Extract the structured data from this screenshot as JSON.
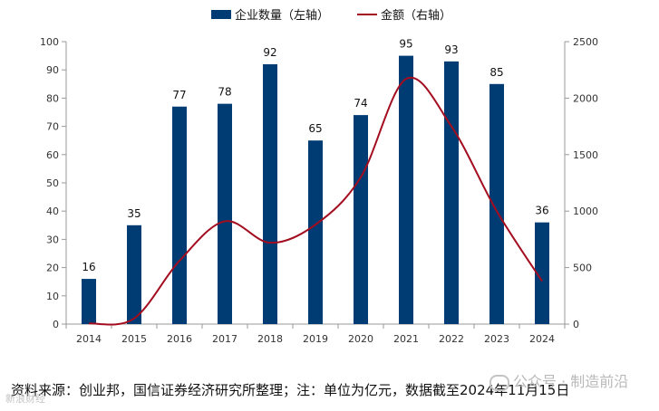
{
  "chart_data": {
    "type": "bar+line",
    "categories": [
      "2014",
      "2015",
      "2016",
      "2017",
      "2018",
      "2019",
      "2020",
      "2021",
      "2022",
      "2023",
      "2024"
    ],
    "series": [
      {
        "name": "企业数量（左轴）",
        "type": "bar",
        "axis": "left",
        "values": [
          16,
          35,
          77,
          78,
          92,
          65,
          74,
          95,
          93,
          85,
          36
        ],
        "color": "#003C74"
      },
      {
        "name": "金额（右轴）",
        "type": "line",
        "axis": "right",
        "values": [
          5,
          50,
          560,
          910,
          720,
          880,
          1300,
          2170,
          1750,
          1000,
          380
        ],
        "color": "#A30D1F"
      }
    ],
    "left_axis": {
      "min": 0,
      "max": 100,
      "ticks": [
        0,
        10,
        20,
        30,
        40,
        50,
        60,
        70,
        80,
        90,
        100
      ]
    },
    "right_axis": {
      "min": 0,
      "max": 2500,
      "ticks": [
        0,
        500,
        1000,
        1500,
        2000,
        2500
      ]
    },
    "legend_position": "top-center",
    "grid": false
  },
  "legend": {
    "bar_label": "企业数量（左轴）",
    "line_label": "金额（右轴）"
  },
  "source_note": "资料来源：创业邦，国信证券经济研究所整理；注：单位为亿元，数据截至2024年11月15日",
  "watermark": {
    "right_text": "公众号 · 制造前沿",
    "left_text": "新浪财经"
  }
}
